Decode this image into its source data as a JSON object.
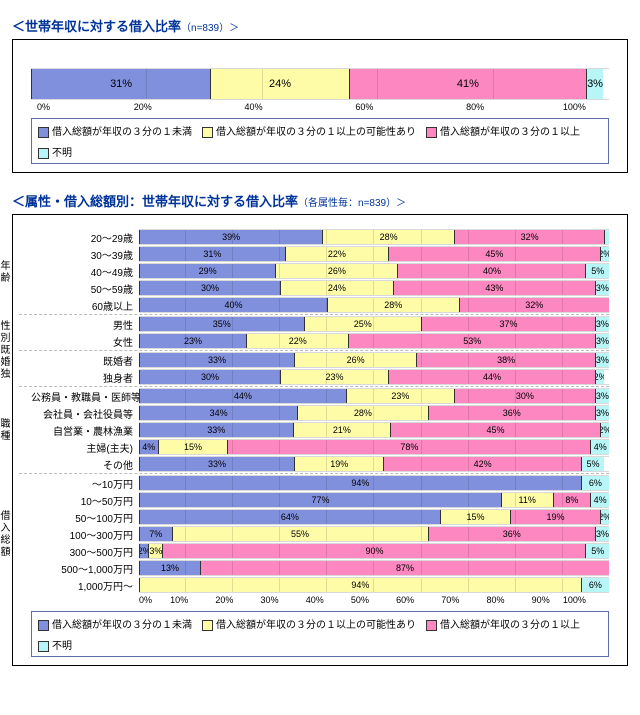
{
  "colors": {
    "c1": "#8190dd",
    "c2": "#fffca8",
    "c3": "#fc87c1",
    "c4": "#b7f5f7",
    "border": "#333333",
    "legendBorder": "#5c6ea8"
  },
  "chart1": {
    "title": "＜世帯年収に対する借入比率",
    "subtitle": "（n=839）＞",
    "xTicks": [
      "0%",
      "20%",
      "40%",
      "60%",
      "80%",
      "100%"
    ],
    "series": [
      {
        "v": 31,
        "c": "c1",
        "label": "31%"
      },
      {
        "v": 24,
        "c": "c2",
        "label": "24%"
      },
      {
        "v": 41,
        "c": "c3",
        "label": "41%"
      },
      {
        "v": 3,
        "c": "c4",
        "label": "3%"
      }
    ]
  },
  "legend": [
    {
      "c": "c1",
      "t": "借入総額が年収の３分の１未満"
    },
    {
      "c": "c2",
      "t": "借入総額が年収の３分の１以上の可能性あり"
    },
    {
      "c": "c3",
      "t": "借入総額が年収の３分の１以上"
    },
    {
      "c": "c4",
      "t": "不明"
    }
  ],
  "chart2": {
    "title": "＜属性・借入総額別：世帯年収に対する借入比率",
    "subtitle": "（各属性毎：n=839）＞",
    "xTicks": [
      "0%",
      "10%",
      "20%",
      "30%",
      "40%",
      "50%",
      "60%",
      "70%",
      "80%",
      "90%",
      "100%"
    ],
    "groups": [
      {
        "name": "年齢",
        "rows": [
          {
            "label": "20～29歳",
            "seg": [
              {
                "v": 39,
                "l": "39%"
              },
              {
                "v": 28,
                "l": "28%"
              },
              {
                "v": 32,
                "l": "32%"
              },
              {
                "v": 1,
                "l": ""
              }
            ]
          },
          {
            "label": "30～39歳",
            "seg": [
              {
                "v": 31,
                "l": "31%"
              },
              {
                "v": 22,
                "l": "22%"
              },
              {
                "v": 45,
                "l": "45%"
              },
              {
                "v": 2,
                "l": "2%"
              }
            ]
          },
          {
            "label": "40～49歳",
            "seg": [
              {
                "v": 29,
                "l": "29%"
              },
              {
                "v": 26,
                "l": "26%"
              },
              {
                "v": 40,
                "l": "40%"
              },
              {
                "v": 5,
                "l": "5%"
              }
            ]
          },
          {
            "label": "50～59歳",
            "seg": [
              {
                "v": 30,
                "l": "30%"
              },
              {
                "v": 24,
                "l": "24%"
              },
              {
                "v": 43,
                "l": "43%"
              },
              {
                "v": 3,
                "l": "3%"
              }
            ]
          },
          {
            "label": "60歳以上",
            "seg": [
              {
                "v": 40,
                "l": "40%"
              },
              {
                "v": 28,
                "l": "28%"
              },
              {
                "v": 32,
                "l": "32%"
              },
              {
                "v": 0,
                "l": ""
              }
            ]
          }
        ]
      },
      {
        "name": "性別",
        "rows": [
          {
            "label": "男性",
            "seg": [
              {
                "v": 35,
                "l": "35%"
              },
              {
                "v": 25,
                "l": "25%"
              },
              {
                "v": 37,
                "l": "37%"
              },
              {
                "v": 3,
                "l": "3%"
              }
            ]
          },
          {
            "label": "女性",
            "seg": [
              {
                "v": 23,
                "l": "23%"
              },
              {
                "v": 22,
                "l": "22%"
              },
              {
                "v": 53,
                "l": "53%"
              },
              {
                "v": 3,
                "l": "3%"
              }
            ]
          }
        ]
      },
      {
        "name": "既婚独身",
        "rows": [
          {
            "label": "既婚者",
            "seg": [
              {
                "v": 33,
                "l": "33%"
              },
              {
                "v": 26,
                "l": "26%"
              },
              {
                "v": 38,
                "l": "38%"
              },
              {
                "v": 3,
                "l": "3%"
              }
            ]
          },
          {
            "label": "独身者",
            "seg": [
              {
                "v": 30,
                "l": "30%"
              },
              {
                "v": 23,
                "l": "23%"
              },
              {
                "v": 44,
                "l": "44%"
              },
              {
                "v": 2,
                "l": "2%"
              }
            ]
          }
        ]
      },
      {
        "name": "職種",
        "rows": [
          {
            "label": "公務員・教職員・医師等",
            "seg": [
              {
                "v": 44,
                "l": "44%"
              },
              {
                "v": 23,
                "l": "23%"
              },
              {
                "v": 30,
                "l": "30%"
              },
              {
                "v": 3,
                "l": "3%"
              }
            ]
          },
          {
            "label": "会社員・会社役員等",
            "seg": [
              {
                "v": 34,
                "l": "34%"
              },
              {
                "v": 28,
                "l": "28%"
              },
              {
                "v": 36,
                "l": "36%"
              },
              {
                "v": 3,
                "l": "3%"
              }
            ]
          },
          {
            "label": "自営業・農林漁業",
            "seg": [
              {
                "v": 33,
                "l": "33%"
              },
              {
                "v": 21,
                "l": "21%"
              },
              {
                "v": 45,
                "l": "45%"
              },
              {
                "v": 2,
                "l": "2%"
              }
            ]
          },
          {
            "label": "主婦(主夫)",
            "seg": [
              {
                "v": 4,
                "l": "4%"
              },
              {
                "v": 15,
                "l": "15%"
              },
              {
                "v": 78,
                "l": "78%"
              },
              {
                "v": 4,
                "l": "4%"
              }
            ]
          },
          {
            "label": "その他",
            "seg": [
              {
                "v": 33,
                "l": "33%"
              },
              {
                "v": 19,
                "l": "19%"
              },
              {
                "v": 42,
                "l": "42%"
              },
              {
                "v": 5,
                "l": "5%"
              }
            ]
          }
        ]
      },
      {
        "name": "借入総額",
        "rows": [
          {
            "label": "～10万円",
            "seg": [
              {
                "v": 94,
                "l": "94%"
              },
              {
                "v": 0,
                "l": ""
              },
              {
                "v": 0,
                "l": ""
              },
              {
                "v": 6,
                "l": "6%"
              }
            ]
          },
          {
            "label": "10～50万円",
            "seg": [
              {
                "v": 77,
                "l": "77%"
              },
              {
                "v": 11,
                "l": "11%"
              },
              {
                "v": 8,
                "l": "8%"
              },
              {
                "v": 4,
                "l": "4%"
              }
            ]
          },
          {
            "label": "50～100万円",
            "seg": [
              {
                "v": 64,
                "l": "64%"
              },
              {
                "v": 15,
                "l": "15%"
              },
              {
                "v": 19,
                "l": "19%"
              },
              {
                "v": 2,
                "l": "2%"
              }
            ]
          },
          {
            "label": "100～300万円",
            "seg": [
              {
                "v": 7,
                "l": "7%"
              },
              {
                "v": 55,
                "l": "55%"
              },
              {
                "v": 36,
                "l": "36%"
              },
              {
                "v": 3,
                "l": "3%"
              }
            ]
          },
          {
            "label": "300～500万円",
            "seg": [
              {
                "v": 2,
                "l": "2%"
              },
              {
                "v": 3,
                "l": "3%"
              },
              {
                "v": 90,
                "l": "90%"
              },
              {
                "v": 5,
                "l": "5%"
              }
            ]
          },
          {
            "label": "500～1,000万円",
            "seg": [
              {
                "v": 13,
                "l": "13%"
              },
              {
                "v": 0,
                "l": ""
              },
              {
                "v": 87,
                "l": "87%"
              },
              {
                "v": 0,
                "l": ""
              }
            ]
          },
          {
            "label": "1,000万円～",
            "seg": [
              {
                "v": 0,
                "l": ""
              },
              {
                "v": 94,
                "l": "94%"
              },
              {
                "v": 0,
                "l": ""
              },
              {
                "v": 6,
                "l": "6%"
              }
            ]
          }
        ]
      }
    ]
  }
}
